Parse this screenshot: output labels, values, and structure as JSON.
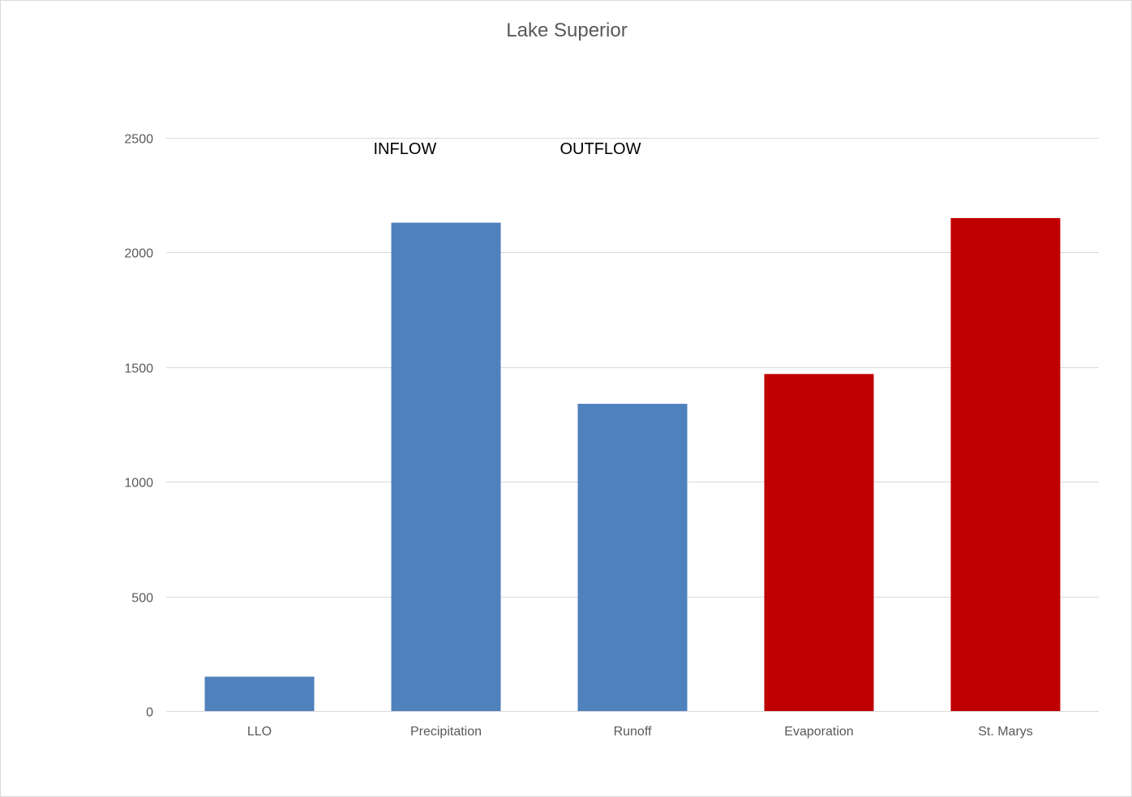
{
  "chart_data": {
    "type": "bar",
    "title": "Lake Superior",
    "xlabel": "",
    "ylabel": "",
    "categories": [
      "LLO",
      "Precipitation",
      "Runoff",
      "Evaporation",
      "St. Marys"
    ],
    "values": [
      150,
      2130,
      1340,
      1470,
      2150
    ],
    "bar_colors": [
      "#4f81bd",
      "#4f81bd",
      "#4f81bd",
      "#c00000",
      "#c00000"
    ],
    "ylim": [
      0,
      2500
    ],
    "yticks": [
      0,
      500,
      1000,
      1500,
      2000,
      2500
    ],
    "grid": true,
    "legend": "none",
    "annotations": [
      {
        "text": "INFLOW",
        "category": "Precipitation"
      },
      {
        "text": "OUTFLOW",
        "category": "Runoff"
      }
    ]
  }
}
